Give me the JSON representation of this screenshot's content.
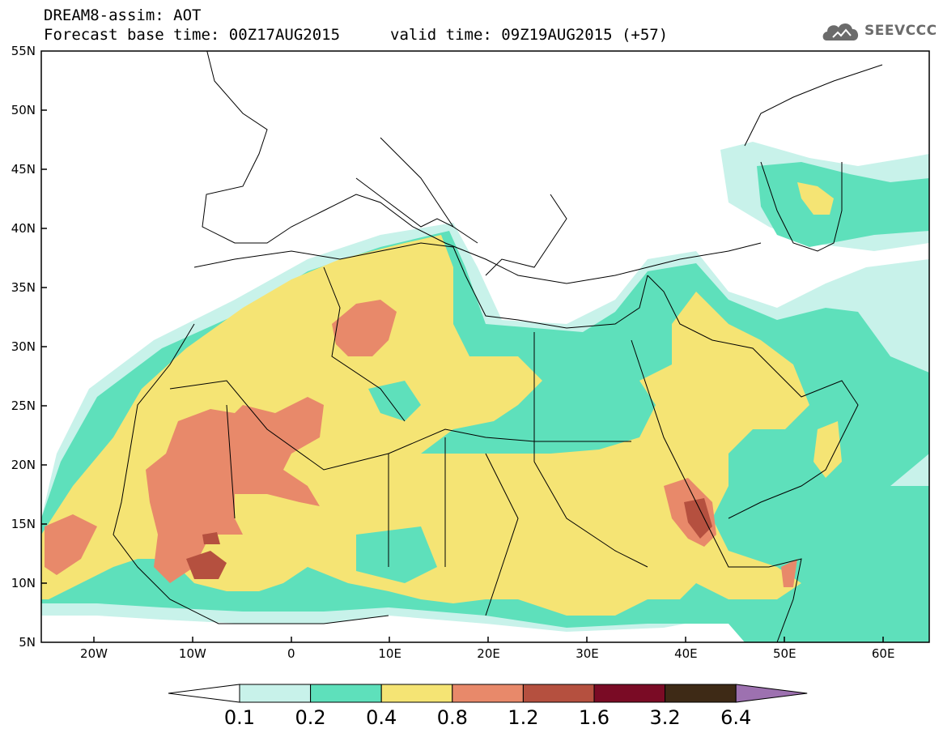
{
  "title": {
    "line1": "DREAM8-assim: AOT",
    "line2": "Forecast base time: 00Z17AUG2015",
    "valid": "valid time: 09Z19AUG2015 (+57)"
  },
  "logo": {
    "text": "SEEVCCC",
    "icon": "cloud-icon"
  },
  "map": {
    "lat_labels": [
      "55N",
      "50N",
      "45N",
      "40N",
      "35N",
      "30N",
      "25N",
      "20N",
      "15N",
      "10N",
      "5N"
    ],
    "lon_labels": [
      "20W",
      "10W",
      "0",
      "10E",
      "20E",
      "30E",
      "40E",
      "50E",
      "60E"
    ],
    "lat_range": [
      5,
      55
    ],
    "lon_range": [
      -25,
      65
    ]
  },
  "colorbar": {
    "levels": [
      "0.1",
      "0.2",
      "0.4",
      "0.8",
      "1.2",
      "1.6",
      "3.2",
      "6.4"
    ],
    "colors": [
      "#ffffff",
      "#c8f2ea",
      "#5ee0bb",
      "#f5e474",
      "#e8896a",
      "#b5503f",
      "#7a0b25",
      "#3e2a16",
      "#9d71b0"
    ]
  }
}
